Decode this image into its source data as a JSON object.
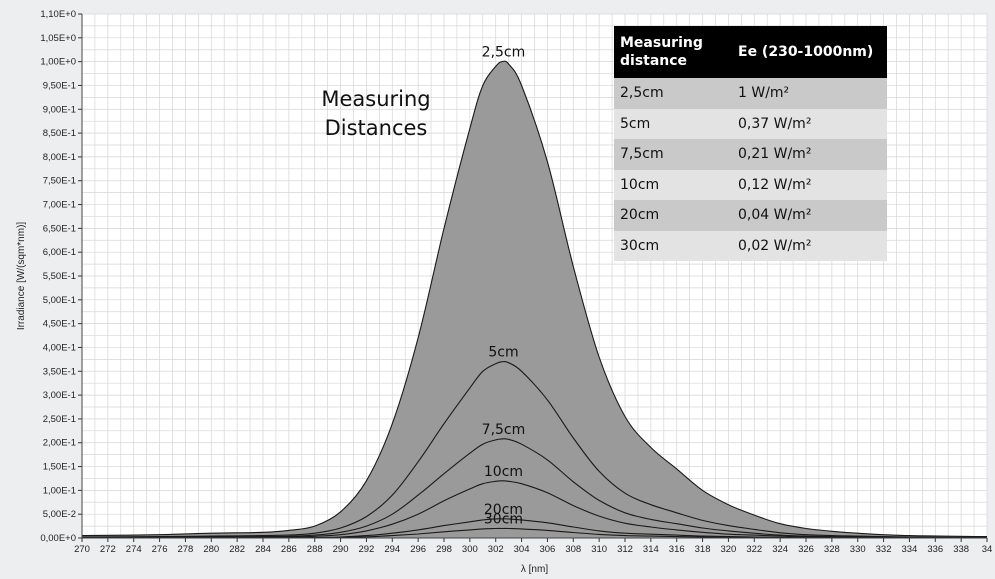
{
  "chart_data": {
    "type": "area",
    "title": "",
    "xlabel": "λ [nm]",
    "ylabel": "Irradiance [W/(sqm*nm)]",
    "xlim": [
      270,
      340
    ],
    "ylim": [
      0,
      1.1
    ],
    "grid": true,
    "x_ticks": [
      "270",
      "272",
      "274",
      "276",
      "278",
      "280",
      "282",
      "284",
      "286",
      "288",
      "290",
      "292",
      "294",
      "296",
      "298",
      "300",
      "302",
      "304",
      "306",
      "308",
      "310",
      "312",
      "314",
      "316",
      "318",
      "320",
      "322",
      "324",
      "326",
      "328",
      "330",
      "332",
      "334",
      "336",
      "338",
      "34"
    ],
    "y_ticks": [
      "0,00E+0",
      "5,00E-2",
      "1,00E-1",
      "1,50E-1",
      "2,00E-1",
      "2,50E-1",
      "3,00E-1",
      "3,50E-1",
      "4,00E-1",
      "4,50E-1",
      "5,00E-1",
      "5,50E-1",
      "6,00E-1",
      "6,50E-1",
      "7,00E-1",
      "7,50E-1",
      "8,00E-1",
      "8,50E-1",
      "9,00E-1",
      "9,50E-1",
      "1,00E+0",
      "1,05E+0",
      "1,10E+0"
    ],
    "x": [
      270,
      276,
      280,
      284,
      286,
      288,
      290,
      292,
      294,
      296,
      298,
      300,
      301,
      302,
      302.5,
      303,
      304,
      306,
      308,
      310,
      312,
      314,
      316,
      318,
      320,
      322,
      324,
      326,
      328,
      330,
      334,
      340
    ],
    "series": [
      {
        "name": "2,5cm",
        "values": [
          0.005,
          0.007,
          0.01,
          0.012,
          0.016,
          0.025,
          0.055,
          0.12,
          0.24,
          0.42,
          0.65,
          0.86,
          0.95,
          0.99,
          1.0,
          0.995,
          0.95,
          0.79,
          0.57,
          0.38,
          0.255,
          0.19,
          0.145,
          0.1,
          0.07,
          0.048,
          0.03,
          0.02,
          0.014,
          0.01,
          0.005,
          0.003
        ]
      },
      {
        "name": "5cm",
        "values": [
          0.002,
          0.003,
          0.004,
          0.005,
          0.006,
          0.01,
          0.021,
          0.045,
          0.09,
          0.16,
          0.24,
          0.315,
          0.35,
          0.366,
          0.37,
          0.368,
          0.35,
          0.29,
          0.21,
          0.14,
          0.094,
          0.07,
          0.053,
          0.037,
          0.026,
          0.018,
          0.011,
          0.007,
          0.005,
          0.004,
          0.002,
          0.001
        ]
      },
      {
        "name": "7,5cm",
        "values": [
          0.001,
          0.002,
          0.002,
          0.003,
          0.0035,
          0.006,
          0.012,
          0.025,
          0.05,
          0.09,
          0.135,
          0.178,
          0.197,
          0.206,
          0.208,
          0.207,
          0.197,
          0.164,
          0.118,
          0.079,
          0.053,
          0.039,
          0.03,
          0.021,
          0.015,
          0.01,
          0.006,
          0.004,
          0.003,
          0.002,
          0.001,
          0.001
        ]
      },
      {
        "name": "10cm",
        "values": [
          0.001,
          0.001,
          0.001,
          0.0015,
          0.002,
          0.0035,
          0.007,
          0.015,
          0.029,
          0.05,
          0.078,
          0.103,
          0.114,
          0.119,
          0.12,
          0.119,
          0.114,
          0.095,
          0.068,
          0.046,
          0.031,
          0.023,
          0.017,
          0.012,
          0.008,
          0.006,
          0.004,
          0.002,
          0.002,
          0.001,
          0.001,
          0.0005
        ]
      },
      {
        "name": "20cm",
        "values": [
          0.0005,
          0.0005,
          0.0005,
          0.0005,
          0.0007,
          0.001,
          0.0022,
          0.005,
          0.01,
          0.017,
          0.026,
          0.034,
          0.038,
          0.04,
          0.04,
          0.04,
          0.038,
          0.032,
          0.023,
          0.015,
          0.01,
          0.008,
          0.006,
          0.004,
          0.003,
          0.002,
          0.0013,
          0.0008,
          0.0006,
          0.0004,
          0.0002,
          0.0001
        ]
      },
      {
        "name": "30cm",
        "values": [
          0.0003,
          0.0003,
          0.0003,
          0.0003,
          0.0004,
          0.0006,
          0.0012,
          0.0025,
          0.005,
          0.0085,
          0.013,
          0.017,
          0.019,
          0.02,
          0.02,
          0.02,
          0.019,
          0.016,
          0.0115,
          0.0075,
          0.005,
          0.004,
          0.003,
          0.002,
          0.0015,
          0.001,
          0.0007,
          0.0004,
          0.0003,
          0.0002,
          0.0001,
          0.0001
        ]
      }
    ],
    "annotation": [
      "Measuring",
      "Distances"
    ],
    "legend_table": {
      "headers": [
        "Measuring distance",
        "Ee  (230-1000nm)"
      ],
      "rows": [
        [
          "2,5cm",
          "1 W/m²"
        ],
        [
          "5cm",
          "0,37 W/m²"
        ],
        [
          "7,5cm",
          "0,21 W/m²"
        ],
        [
          "10cm",
          "0,12 W/m²"
        ],
        [
          "20cm",
          "0,04 W/m²"
        ],
        [
          "30cm",
          "0,02 W/m²"
        ]
      ]
    },
    "colors": {
      "fill": "#9a9a9a",
      "line": "#1a1a1a",
      "plot_bg": "#ffffff",
      "grid": "#d6d6d6"
    }
  }
}
